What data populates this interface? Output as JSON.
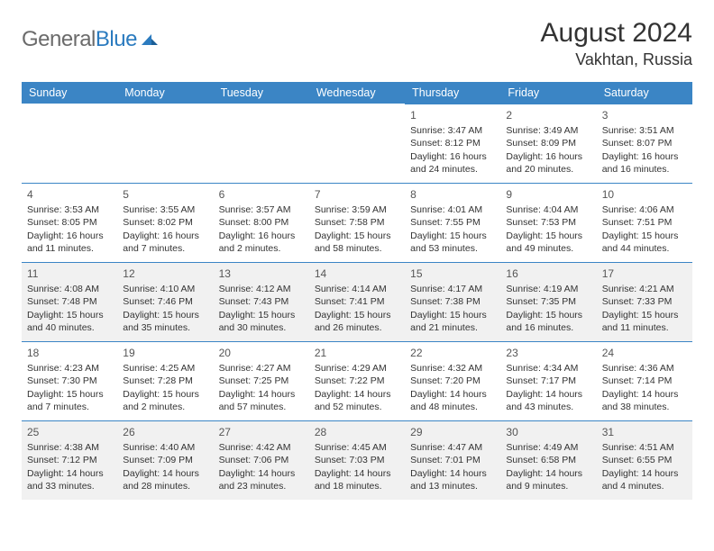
{
  "logo": {
    "text1": "General",
    "text2": "Blue"
  },
  "header": {
    "month": "August 2024",
    "location": "Vakhtan, Russia"
  },
  "colors": {
    "header_bg": "#3b85c5",
    "header_text": "#ffffff",
    "shade_bg": "#f1f1f1",
    "border": "#3b85c5",
    "logo_gray": "#6b6b6b",
    "logo_blue": "#2b7bbf"
  },
  "weekdays": [
    "Sunday",
    "Monday",
    "Tuesday",
    "Wednesday",
    "Thursday",
    "Friday",
    "Saturday"
  ],
  "first_weekday_index": 4,
  "days": [
    {
      "n": 1,
      "sunrise": "3:47 AM",
      "sunset": "8:12 PM",
      "daylight": "16 hours and 24 minutes."
    },
    {
      "n": 2,
      "sunrise": "3:49 AM",
      "sunset": "8:09 PM",
      "daylight": "16 hours and 20 minutes."
    },
    {
      "n": 3,
      "sunrise": "3:51 AM",
      "sunset": "8:07 PM",
      "daylight": "16 hours and 16 minutes."
    },
    {
      "n": 4,
      "sunrise": "3:53 AM",
      "sunset": "8:05 PM",
      "daylight": "16 hours and 11 minutes."
    },
    {
      "n": 5,
      "sunrise": "3:55 AM",
      "sunset": "8:02 PM",
      "daylight": "16 hours and 7 minutes."
    },
    {
      "n": 6,
      "sunrise": "3:57 AM",
      "sunset": "8:00 PM",
      "daylight": "16 hours and 2 minutes."
    },
    {
      "n": 7,
      "sunrise": "3:59 AM",
      "sunset": "7:58 PM",
      "daylight": "15 hours and 58 minutes."
    },
    {
      "n": 8,
      "sunrise": "4:01 AM",
      "sunset": "7:55 PM",
      "daylight": "15 hours and 53 minutes."
    },
    {
      "n": 9,
      "sunrise": "4:04 AM",
      "sunset": "7:53 PM",
      "daylight": "15 hours and 49 minutes."
    },
    {
      "n": 10,
      "sunrise": "4:06 AM",
      "sunset": "7:51 PM",
      "daylight": "15 hours and 44 minutes."
    },
    {
      "n": 11,
      "sunrise": "4:08 AM",
      "sunset": "7:48 PM",
      "daylight": "15 hours and 40 minutes."
    },
    {
      "n": 12,
      "sunrise": "4:10 AM",
      "sunset": "7:46 PM",
      "daylight": "15 hours and 35 minutes."
    },
    {
      "n": 13,
      "sunrise": "4:12 AM",
      "sunset": "7:43 PM",
      "daylight": "15 hours and 30 minutes."
    },
    {
      "n": 14,
      "sunrise": "4:14 AM",
      "sunset": "7:41 PM",
      "daylight": "15 hours and 26 minutes."
    },
    {
      "n": 15,
      "sunrise": "4:17 AM",
      "sunset": "7:38 PM",
      "daylight": "15 hours and 21 minutes."
    },
    {
      "n": 16,
      "sunrise": "4:19 AM",
      "sunset": "7:35 PM",
      "daylight": "15 hours and 16 minutes."
    },
    {
      "n": 17,
      "sunrise": "4:21 AM",
      "sunset": "7:33 PM",
      "daylight": "15 hours and 11 minutes."
    },
    {
      "n": 18,
      "sunrise": "4:23 AM",
      "sunset": "7:30 PM",
      "daylight": "15 hours and 7 minutes."
    },
    {
      "n": 19,
      "sunrise": "4:25 AM",
      "sunset": "7:28 PM",
      "daylight": "15 hours and 2 minutes."
    },
    {
      "n": 20,
      "sunrise": "4:27 AM",
      "sunset": "7:25 PM",
      "daylight": "14 hours and 57 minutes."
    },
    {
      "n": 21,
      "sunrise": "4:29 AM",
      "sunset": "7:22 PM",
      "daylight": "14 hours and 52 minutes."
    },
    {
      "n": 22,
      "sunrise": "4:32 AM",
      "sunset": "7:20 PM",
      "daylight": "14 hours and 48 minutes."
    },
    {
      "n": 23,
      "sunrise": "4:34 AM",
      "sunset": "7:17 PM",
      "daylight": "14 hours and 43 minutes."
    },
    {
      "n": 24,
      "sunrise": "4:36 AM",
      "sunset": "7:14 PM",
      "daylight": "14 hours and 38 minutes."
    },
    {
      "n": 25,
      "sunrise": "4:38 AM",
      "sunset": "7:12 PM",
      "daylight": "14 hours and 33 minutes."
    },
    {
      "n": 26,
      "sunrise": "4:40 AM",
      "sunset": "7:09 PM",
      "daylight": "14 hours and 28 minutes."
    },
    {
      "n": 27,
      "sunrise": "4:42 AM",
      "sunset": "7:06 PM",
      "daylight": "14 hours and 23 minutes."
    },
    {
      "n": 28,
      "sunrise": "4:45 AM",
      "sunset": "7:03 PM",
      "daylight": "14 hours and 18 minutes."
    },
    {
      "n": 29,
      "sunrise": "4:47 AM",
      "sunset": "7:01 PM",
      "daylight": "14 hours and 13 minutes."
    },
    {
      "n": 30,
      "sunrise": "4:49 AM",
      "sunset": "6:58 PM",
      "daylight": "14 hours and 9 minutes."
    },
    {
      "n": 31,
      "sunrise": "4:51 AM",
      "sunset": "6:55 PM",
      "daylight": "14 hours and 4 minutes."
    }
  ],
  "labels": {
    "sunrise": "Sunrise: ",
    "sunset": "Sunset: ",
    "daylight": "Daylight: "
  },
  "shaded_rows": [
    2,
    4
  ]
}
